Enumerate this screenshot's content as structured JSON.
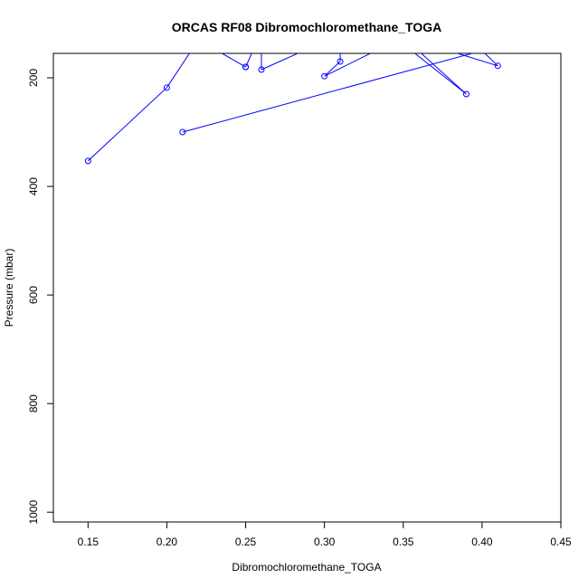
{
  "chart_data": {
    "type": "scatter",
    "title": "ORCAS RF08 Dibromochloromethane_TOGA",
    "xlabel": "Dibromochloromethane_TOGA",
    "ylabel": "Pressure (mbar)",
    "xlim": [
      0.128,
      0.45
    ],
    "ylim": [
      1018,
      155
    ],
    "y_reversed": true,
    "grid": false,
    "x_ticks": [
      0.15,
      0.2,
      0.25,
      0.3,
      0.35,
      0.4,
      0.45
    ],
    "x_tick_labels": [
      "0.15",
      "0.20",
      "0.25",
      "0.30",
      "0.35",
      "0.40",
      "0.45"
    ],
    "y_ticks": [
      200,
      400,
      600,
      800,
      1000
    ],
    "y_tick_labels": [
      "200",
      "400",
      "600",
      "800",
      "1000"
    ],
    "series": [
      {
        "color": "#0000ff",
        "marker": "open-circle",
        "connected": true,
        "points": [
          {
            "x": 0.15,
            "y": 353
          },
          {
            "x": 0.2,
            "y": 218
          },
          {
            "x": 0.22,
            "y": 130
          },
          {
            "x": 0.25,
            "y": 180
          },
          {
            "x": 0.25,
            "y": 180
          },
          {
            "x": 0.26,
            "y": 115
          },
          {
            "x": 0.26,
            "y": 185
          },
          {
            "x": 0.31,
            "y": 120
          },
          {
            "x": 0.31,
            "y": 170
          },
          {
            "x": 0.3,
            "y": 197
          },
          {
            "x": 0.35,
            "y": 125
          },
          {
            "x": 0.39,
            "y": 230
          },
          {
            "x": 0.34,
            "y": 115
          },
          {
            "x": 0.41,
            "y": 178
          },
          {
            "x": 0.4,
            "y": 150
          },
          {
            "x": 0.21,
            "y": 300
          }
        ]
      }
    ]
  }
}
